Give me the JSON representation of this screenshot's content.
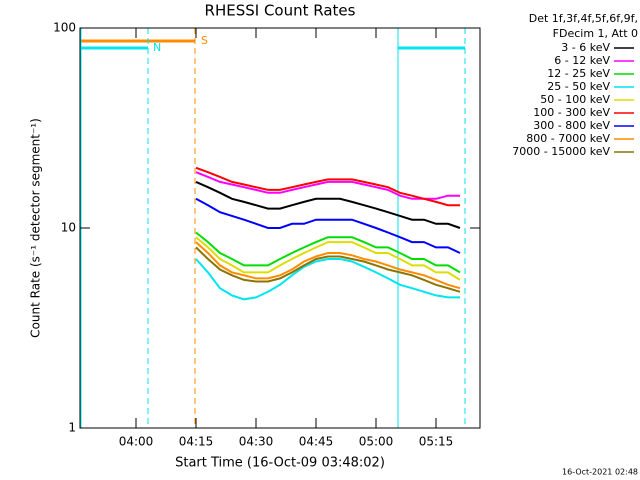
{
  "chart_data": {
    "type": "line",
    "title": "RHESSI Count Rates",
    "xlabel": "Start Time (16-Oct-09 03:48:02)",
    "ylabel": "Count Rate (s⁻¹ detector segment⁻¹)",
    "legend_header": [
      "Det 1f,3f,4f,5f,6f,9f,",
      "FDecim 1, Att 0"
    ],
    "annotations": [
      "S",
      "N"
    ],
    "footer": "16-Oct-2021 02:48",
    "log_y": true,
    "xlim": [
      "03:46",
      "05:26"
    ],
    "xticks": [
      "04:00",
      "04:15",
      "04:30",
      "04:45",
      "05:00",
      "05:15"
    ],
    "ylim": [
      1,
      100
    ],
    "yticks": [
      1,
      10,
      100
    ],
    "x": [
      "04:15",
      "04:18",
      "04:21",
      "04:24",
      "04:27",
      "04:30",
      "04:33",
      "04:36",
      "04:39",
      "04:42",
      "04:45",
      "04:48",
      "04:51",
      "04:54",
      "04:57",
      "05:00",
      "05:03",
      "05:06",
      "05:09",
      "05:12",
      "05:15",
      "05:18",
      "05:21"
    ],
    "series": [
      {
        "name": "3 - 6 keV",
        "color": "#000000",
        "values": [
          17,
          16,
          15,
          14,
          13.5,
          13,
          12.5,
          12.5,
          13,
          13.5,
          14,
          14,
          14,
          13.5,
          13,
          12.5,
          12,
          11.5,
          11,
          11,
          10.5,
          10.5,
          10
        ]
      },
      {
        "name": "6 - 12 keV",
        "color": "#ff00ff",
        "values": [
          19,
          18,
          17,
          16.5,
          16,
          15.5,
          15,
          15,
          15.5,
          16,
          16.5,
          17,
          17,
          17,
          16.5,
          16,
          15.5,
          14.5,
          14,
          14,
          14,
          14.5,
          14.5
        ]
      },
      {
        "name": "12 - 25 keV",
        "color": "#00dd00",
        "values": [
          9.5,
          8.5,
          7.5,
          7,
          6.5,
          6.5,
          6.5,
          7,
          7.5,
          8,
          8.5,
          9,
          9,
          9,
          8.5,
          8,
          8,
          7.5,
          7,
          7,
          6.5,
          6.5,
          6
        ]
      },
      {
        "name": "25 - 50 keV",
        "color": "#00e5ee",
        "values": [
          7,
          6,
          5,
          4.6,
          4.4,
          4.5,
          4.8,
          5.2,
          5.8,
          6.4,
          6.8,
          7,
          7,
          6.8,
          6.4,
          6,
          5.6,
          5.2,
          5,
          4.8,
          4.6,
          4.5,
          4.5
        ]
      },
      {
        "name": "50 - 100 keV",
        "color": "#dddd00",
        "values": [
          9,
          8,
          7,
          6.5,
          6,
          6,
          6,
          6.5,
          7,
          7.5,
          8,
          8.5,
          8.5,
          8.5,
          8,
          7.5,
          7.5,
          7,
          6.5,
          6.5,
          6,
          6,
          5.5
        ]
      },
      {
        "name": "100 - 300 keV",
        "color": "#ff0000",
        "values": [
          20,
          19,
          18,
          17,
          16.5,
          16,
          15.5,
          15.5,
          16,
          16.5,
          17,
          17.5,
          17.5,
          17.5,
          17,
          16.5,
          16,
          15,
          14.5,
          14,
          13.5,
          13,
          13
        ]
      },
      {
        "name": "300 - 800 keV",
        "color": "#0000ff",
        "values": [
          14,
          13,
          12,
          11.5,
          11,
          10.5,
          10,
          10,
          10.5,
          10.5,
          11,
          11,
          11,
          11,
          10.5,
          10,
          9.5,
          9,
          8.5,
          8.5,
          8,
          8,
          7.5
        ]
      },
      {
        "name": "800 - 7000 keV",
        "color": "#ff8c00",
        "values": [
          8.5,
          7.5,
          6.5,
          6,
          5.8,
          5.6,
          5.6,
          5.8,
          6.2,
          6.8,
          7.2,
          7.5,
          7.5,
          7.3,
          7,
          6.8,
          6.5,
          6.2,
          6,
          5.8,
          5.5,
          5.2,
          5
        ]
      },
      {
        "name": "7000 - 15000 keV",
        "color": "#8b7500",
        "values": [
          8,
          7,
          6.2,
          5.8,
          5.5,
          5.4,
          5.4,
          5.6,
          6,
          6.5,
          7,
          7.2,
          7.2,
          7,
          6.8,
          6.5,
          6.2,
          6,
          5.8,
          5.5,
          5.2,
          5,
          4.8
        ]
      }
    ]
  }
}
